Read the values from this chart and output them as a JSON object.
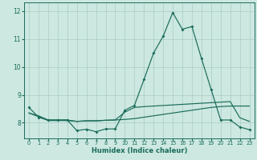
{
  "xlabel": "Humidex (Indice chaleur)",
  "bg_color": "#cce8e0",
  "grid_color": "#aaccC4",
  "line_color": "#1a6b5a",
  "xlim": [
    -0.5,
    23.5
  ],
  "ylim": [
    7.45,
    12.3
  ],
  "yticks": [
    8,
    9,
    10,
    11,
    12
  ],
  "xticks": [
    0,
    1,
    2,
    3,
    4,
    5,
    6,
    7,
    8,
    9,
    10,
    11,
    12,
    13,
    14,
    15,
    16,
    17,
    18,
    19,
    20,
    21,
    22,
    23
  ],
  "line1_x": [
    0,
    1,
    2,
    3,
    4,
    5,
    6,
    7,
    8,
    9,
    10,
    11,
    12,
    13,
    14,
    15,
    16,
    17,
    18,
    19,
    20,
    21,
    22,
    23
  ],
  "line1_y": [
    8.55,
    8.2,
    8.1,
    8.1,
    8.1,
    7.72,
    7.77,
    7.68,
    7.78,
    7.78,
    8.45,
    8.62,
    9.55,
    10.5,
    11.1,
    11.95,
    11.35,
    11.45,
    10.3,
    9.2,
    8.1,
    8.1,
    7.85,
    7.75
  ],
  "line2_x": [
    0,
    1,
    2,
    3,
    4,
    5,
    6,
    7,
    8,
    9,
    10,
    11,
    12,
    13,
    14,
    15,
    16,
    17,
    18,
    19,
    20,
    21,
    22,
    23
  ],
  "line2_y": [
    8.35,
    8.25,
    8.1,
    8.1,
    8.1,
    8.05,
    8.07,
    8.07,
    8.09,
    8.1,
    8.12,
    8.15,
    8.2,
    8.25,
    8.3,
    8.35,
    8.4,
    8.45,
    8.5,
    8.55,
    8.58,
    8.6,
    8.6,
    8.6
  ],
  "line3_x": [
    0,
    1,
    2,
    3,
    4,
    5,
    6,
    7,
    8,
    9,
    10,
    11,
    12,
    13,
    14,
    15,
    16,
    17,
    18,
    19,
    20,
    21,
    22,
    23
  ],
  "line3_y": [
    8.35,
    8.22,
    8.08,
    8.08,
    8.08,
    8.05,
    8.07,
    8.07,
    8.09,
    8.1,
    8.38,
    8.55,
    8.58,
    8.6,
    8.62,
    8.64,
    8.66,
    8.68,
    8.7,
    8.72,
    8.74,
    8.76,
    8.18,
    8.05
  ]
}
